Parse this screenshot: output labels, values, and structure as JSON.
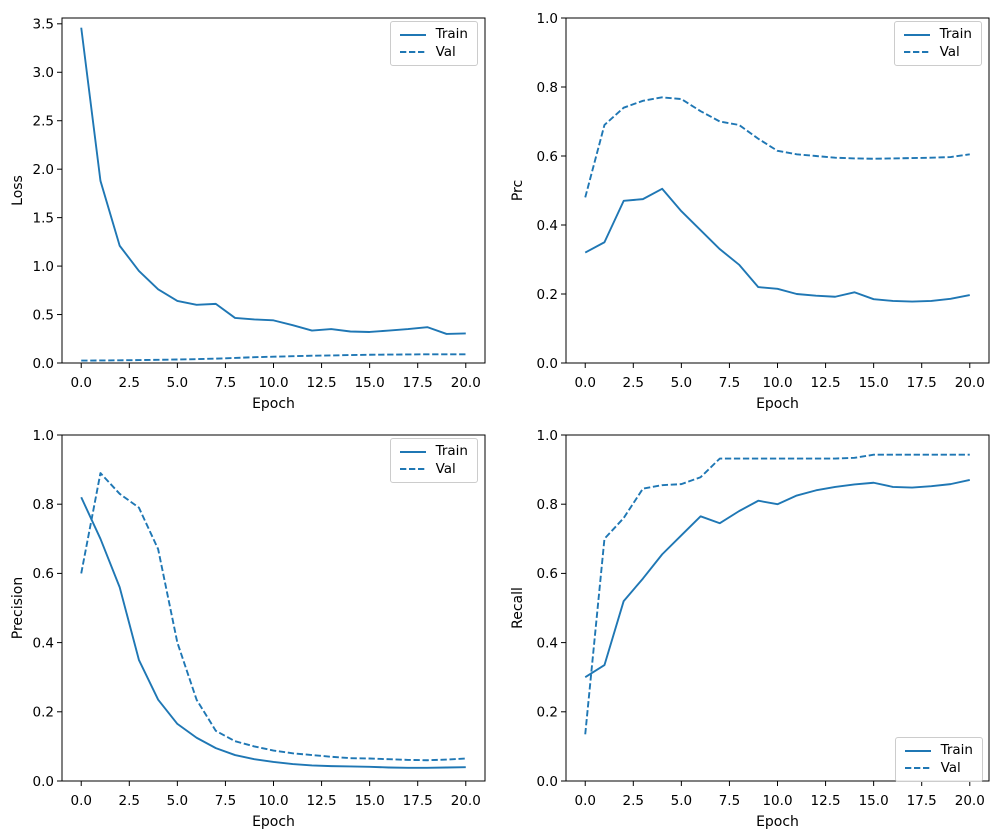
{
  "figure": {
    "background": "#ffffff",
    "line_color": "#1f77b4",
    "spine_color": "#000000",
    "text_color": "#000000",
    "legend_border_color": "#cccccc"
  },
  "legend": {
    "train_label": "Train",
    "val_label": "Val"
  },
  "chart_data": [
    {
      "type": "line",
      "position": "top-left",
      "title": "",
      "xlabel": "Epoch",
      "ylabel": "Loss",
      "x": [
        0,
        1,
        2,
        3,
        4,
        5,
        6,
        7,
        8,
        9,
        10,
        11,
        12,
        13,
        14,
        15,
        16,
        17,
        18,
        19,
        20
      ],
      "series": [
        {
          "name": "Train",
          "style": "solid",
          "values": [
            3.46,
            1.88,
            1.21,
            0.95,
            0.76,
            0.64,
            0.6,
            0.61,
            0.465,
            0.45,
            0.44,
            0.39,
            0.335,
            0.35,
            0.325,
            0.32,
            0.335,
            0.35,
            0.37,
            0.3,
            0.305
          ]
        },
        {
          "name": "Val",
          "style": "dashed",
          "values": [
            0.025,
            0.026,
            0.028,
            0.03,
            0.033,
            0.036,
            0.04,
            0.045,
            0.052,
            0.06,
            0.065,
            0.07,
            0.075,
            0.078,
            0.082,
            0.085,
            0.087,
            0.088,
            0.09,
            0.09,
            0.09
          ]
        }
      ],
      "xlim": [
        -1,
        21
      ],
      "ylim": [
        0,
        3.56
      ],
      "xticks": [
        0.0,
        2.5,
        5.0,
        7.5,
        10.0,
        12.5,
        15.0,
        17.5,
        20.0
      ],
      "yticks": [
        0.0,
        0.5,
        1.0,
        1.5,
        2.0,
        2.5,
        3.0,
        3.5
      ],
      "xtick_labels": [
        "0.0",
        "2.5",
        "5.0",
        "7.5",
        "10.0",
        "12.5",
        "15.0",
        "17.5",
        "20.0"
      ],
      "ytick_labels": [
        "0.0",
        "0.5",
        "1.0",
        "1.5",
        "2.0",
        "2.5",
        "3.0",
        "3.5"
      ],
      "grid": false,
      "legend_position": "upper-right"
    },
    {
      "type": "line",
      "position": "top-right",
      "title": "",
      "xlabel": "Epoch",
      "ylabel": "Prc",
      "x": [
        0,
        1,
        2,
        3,
        4,
        5,
        6,
        7,
        8,
        9,
        10,
        11,
        12,
        13,
        14,
        15,
        16,
        17,
        18,
        19,
        20
      ],
      "series": [
        {
          "name": "Train",
          "style": "solid",
          "values": [
            0.32,
            0.35,
            0.47,
            0.475,
            0.505,
            0.44,
            0.385,
            0.33,
            0.285,
            0.22,
            0.215,
            0.2,
            0.195,
            0.192,
            0.205,
            0.185,
            0.18,
            0.178,
            0.18,
            0.186,
            0.197
          ]
        },
        {
          "name": "Val",
          "style": "dashed",
          "values": [
            0.48,
            0.69,
            0.74,
            0.76,
            0.77,
            0.765,
            0.73,
            0.7,
            0.69,
            0.65,
            0.615,
            0.605,
            0.6,
            0.595,
            0.593,
            0.592,
            0.593,
            0.594,
            0.595,
            0.597,
            0.605
          ]
        }
      ],
      "xlim": [
        -1,
        21
      ],
      "ylim": [
        0,
        1
      ],
      "xticks": [
        0.0,
        2.5,
        5.0,
        7.5,
        10.0,
        12.5,
        15.0,
        17.5,
        20.0
      ],
      "yticks": [
        0.0,
        0.2,
        0.4,
        0.6,
        0.8,
        1.0
      ],
      "xtick_labels": [
        "0.0",
        "2.5",
        "5.0",
        "7.5",
        "10.0",
        "12.5",
        "15.0",
        "17.5",
        "20.0"
      ],
      "ytick_labels": [
        "0.0",
        "0.2",
        "0.4",
        "0.6",
        "0.8",
        "1.0"
      ],
      "grid": false,
      "legend_position": "upper-right"
    },
    {
      "type": "line",
      "position": "bottom-left",
      "title": "",
      "xlabel": "Epoch",
      "ylabel": "Precision",
      "x": [
        0,
        1,
        2,
        3,
        4,
        5,
        6,
        7,
        8,
        9,
        10,
        11,
        12,
        13,
        14,
        15,
        16,
        17,
        18,
        19,
        20
      ],
      "series": [
        {
          "name": "Train",
          "style": "solid",
          "values": [
            0.82,
            0.7,
            0.56,
            0.35,
            0.235,
            0.165,
            0.125,
            0.095,
            0.075,
            0.063,
            0.055,
            0.049,
            0.045,
            0.043,
            0.042,
            0.041,
            0.039,
            0.038,
            0.038,
            0.039,
            0.04
          ]
        },
        {
          "name": "Val",
          "style": "dashed",
          "values": [
            0.6,
            0.89,
            0.83,
            0.79,
            0.67,
            0.4,
            0.235,
            0.145,
            0.115,
            0.1,
            0.088,
            0.08,
            0.075,
            0.07,
            0.066,
            0.065,
            0.063,
            0.061,
            0.06,
            0.062,
            0.065
          ]
        }
      ],
      "xlim": [
        -1,
        21
      ],
      "ylim": [
        0,
        1
      ],
      "xticks": [
        0.0,
        2.5,
        5.0,
        7.5,
        10.0,
        12.5,
        15.0,
        17.5,
        20.0
      ],
      "yticks": [
        0.0,
        0.2,
        0.4,
        0.6,
        0.8,
        1.0
      ],
      "xtick_labels": [
        "0.0",
        "2.5",
        "5.0",
        "7.5",
        "10.0",
        "12.5",
        "15.0",
        "17.5",
        "20.0"
      ],
      "ytick_labels": [
        "0.0",
        "0.2",
        "0.4",
        "0.6",
        "0.8",
        "1.0"
      ],
      "grid": false,
      "legend_position": "upper-right"
    },
    {
      "type": "line",
      "position": "bottom-right",
      "title": "",
      "xlabel": "Epoch",
      "ylabel": "Recall",
      "x": [
        0,
        1,
        2,
        3,
        4,
        5,
        6,
        7,
        8,
        9,
        10,
        11,
        12,
        13,
        14,
        15,
        16,
        17,
        18,
        19,
        20
      ],
      "series": [
        {
          "name": "Train",
          "style": "solid",
          "values": [
            0.3,
            0.335,
            0.52,
            0.585,
            0.655,
            0.71,
            0.765,
            0.745,
            0.78,
            0.81,
            0.8,
            0.825,
            0.84,
            0.85,
            0.857,
            0.862,
            0.85,
            0.848,
            0.852,
            0.858,
            0.87
          ]
        },
        {
          "name": "Val",
          "style": "dashed",
          "values": [
            0.135,
            0.7,
            0.76,
            0.845,
            0.855,
            0.858,
            0.878,
            0.932,
            0.932,
            0.932,
            0.932,
            0.932,
            0.932,
            0.932,
            0.934,
            0.943,
            0.943,
            0.943,
            0.943,
            0.943,
            0.943
          ]
        }
      ],
      "xlim": [
        -1,
        21
      ],
      "ylim": [
        0,
        1
      ],
      "xticks": [
        0.0,
        2.5,
        5.0,
        7.5,
        10.0,
        12.5,
        15.0,
        17.5,
        20.0
      ],
      "yticks": [
        0.0,
        0.2,
        0.4,
        0.6,
        0.8,
        1.0
      ],
      "xtick_labels": [
        "0.0",
        "2.5",
        "5.0",
        "7.5",
        "10.0",
        "12.5",
        "15.0",
        "17.5",
        "20.0"
      ],
      "ytick_labels": [
        "0.0",
        "0.2",
        "0.4",
        "0.6",
        "0.8",
        "1.0"
      ],
      "grid": false,
      "legend_position": "lower-right"
    }
  ]
}
